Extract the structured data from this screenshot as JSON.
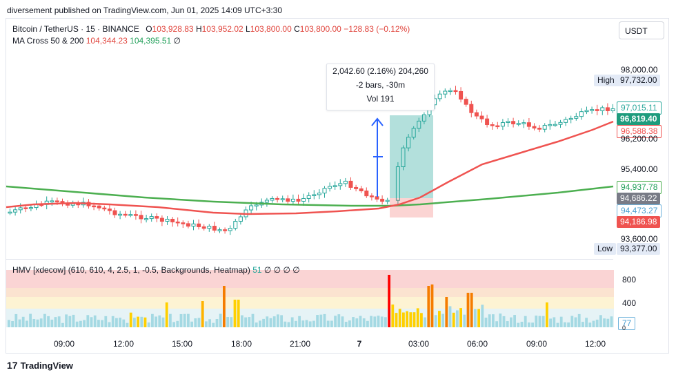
{
  "header": {
    "published": "diversement published on TradingView.com, Jun 01, 2025 14:09 UTC+3:30"
  },
  "symbol": {
    "name": "Bitcoin / TetherUS · 15 · BINANCE",
    "o_label": "O",
    "o_value": "103,928.83",
    "h_label": "H",
    "h_value": "103,952.02",
    "l_label": "L",
    "l_value": "103,800.00",
    "c_label": "C",
    "c_value": "103,800.00",
    "change": "−128.83 (−0.12%)"
  },
  "ma": {
    "label": "MA Cross 50 & 200",
    "v1": "104,344.23",
    "v2": "104,395.51",
    "v3": "∅"
  },
  "currency_button": "USDT",
  "price_axis": {
    "p98000": "98,000.00",
    "high_label": "High",
    "high_value": "97,732.00",
    "p97015": "97,015.11",
    "p96819": "96,819.40",
    "p96588": "96,588.38",
    "p96200": "96,200.00",
    "p95400": "95,400.00",
    "p94937": "94,937.78",
    "p94686": "94,686.22",
    "p94473": "94,473.27",
    "p94186": "94,186.98",
    "p93600": "93,600.00",
    "low_label": "Low",
    "low_value": "93,377.00"
  },
  "measure_tooltip": {
    "line1": "2,042.60 (2.16%) 204,260",
    "line2": "-2 bars, -30m",
    "line3": "Vol 191"
  },
  "hmv": {
    "label": "HMV [xdecow] (610, 610, 4, 2.5, 1, -0.5, Backgrounds, Heatmap)",
    "value": "51",
    "nulls": "∅ ∅ ∅ ∅",
    "axis_800": "800",
    "axis_400": "400",
    "axis_77": "77",
    "axis_0": "0"
  },
  "time_axis": [
    "09:00",
    "12:00",
    "15:00",
    "18:00",
    "21:00",
    "7",
    "03:00",
    "06:00",
    "09:00",
    "12:00"
  ],
  "footer": {
    "logo_text": "TradingView",
    "logo_mark": "17"
  },
  "colors": {
    "up": "#26a69a",
    "down": "#ef5350",
    "ma50": "#4caf50",
    "ma200": "#f05350",
    "accent_blue": "#2962ff"
  },
  "chart_data": {
    "type": "candlestick",
    "title": "Bitcoin / TetherUS · 15 · BINANCE",
    "ylim": [
      93300,
      98200
    ],
    "price_ticks": [
      98000,
      96200,
      95400,
      93600
    ],
    "high": 97732,
    "low": 93377,
    "ma50_last": 96588.38,
    "ma200_last": 94937.78
  }
}
